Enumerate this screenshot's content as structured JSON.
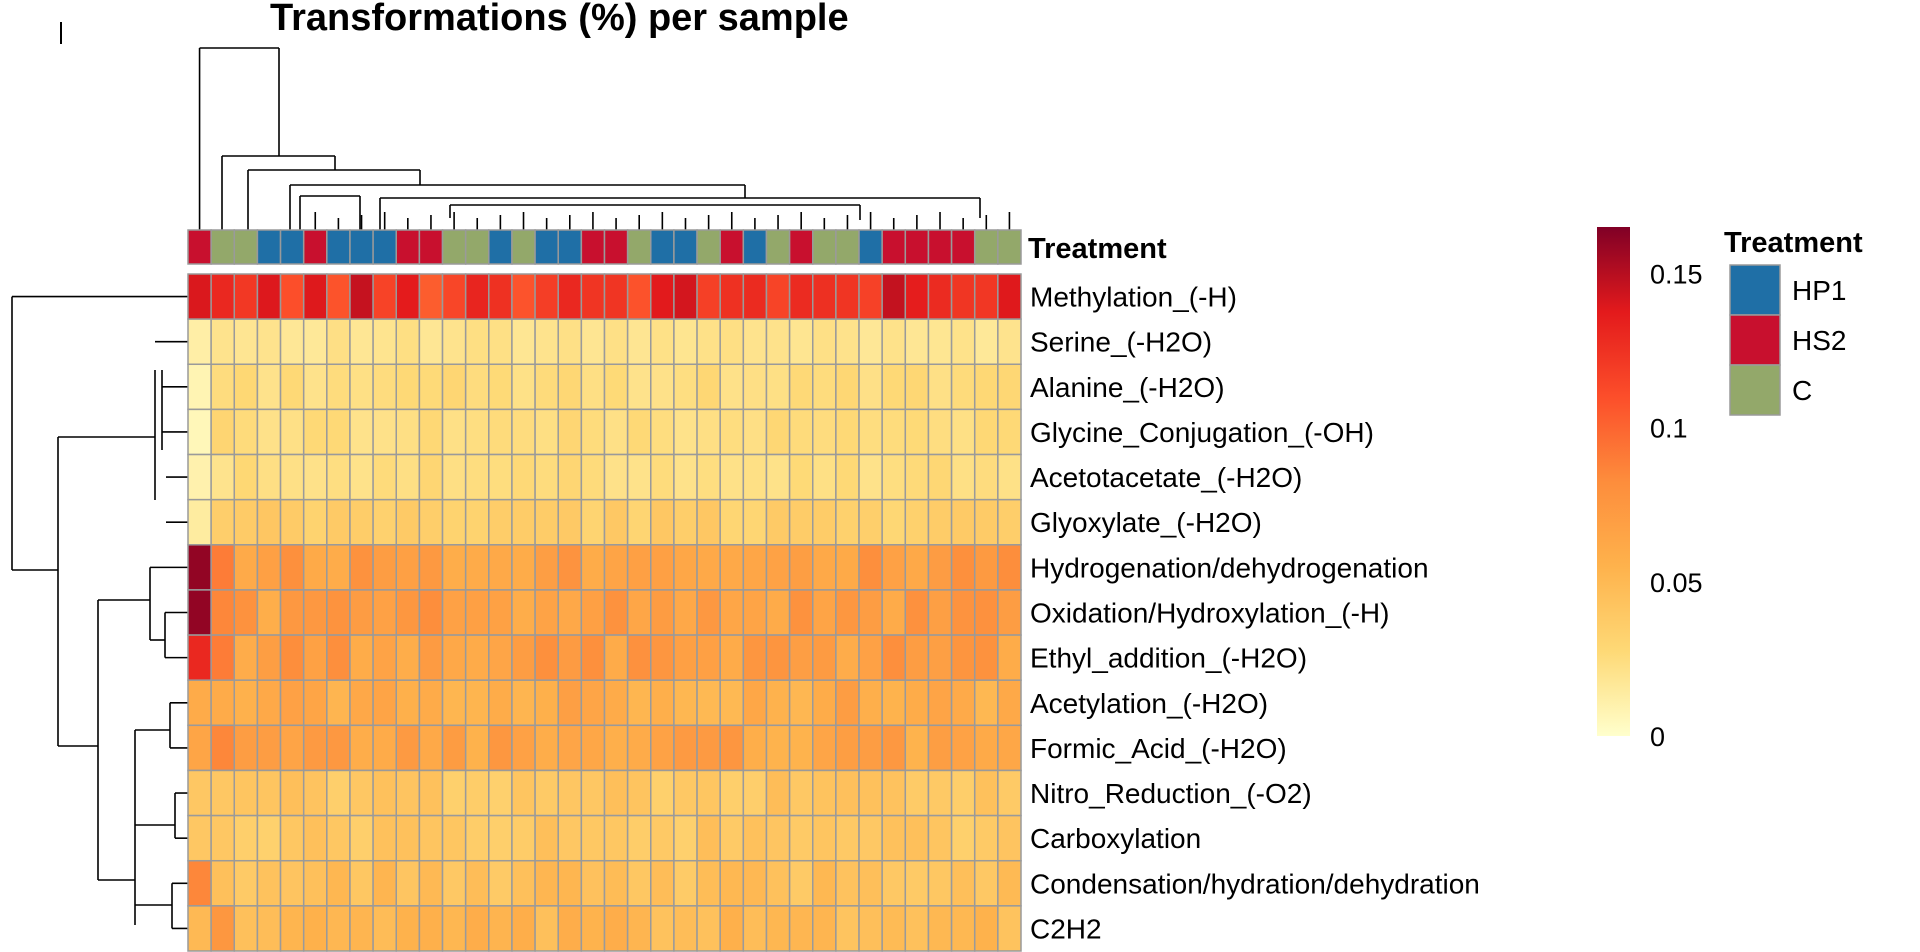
{
  "chart_data": {
    "type": "heatmap",
    "title": "Transformations (%) per sample",
    "rows": [
      "Methylation_(-H)",
      "Serine_(-H2O)",
      "Alanine_(-H2O)",
      "Glycine_Conjugation_(-OH)",
      "Acetotacetate_(-H2O)",
      "Glyoxylate_(-H2O)",
      "Hydrogenation/dehydrogenation",
      "Oxidation/Hydroxylation_(-H)",
      "Ethyl_addition_(-H2O)",
      "Acetylation_(-H2O)",
      "Formic_Acid_(-H2O)",
      "Nitro_Reduction_(-O2)",
      "Carboxylation",
      "Condensation/hydration/dehydration",
      "C2H2"
    ],
    "annotation": {
      "name": "Treatment",
      "groups": [
        {
          "label": "HP1",
          "color": "#1f6fa6"
        },
        {
          "label": "HS2",
          "color": "#c8102e"
        },
        {
          "label": "C",
          "color": "#93a86a"
        }
      ],
      "columns": [
        "HS2",
        "C",
        "C",
        "HP1",
        "HP1",
        "HS2",
        "HP1",
        "HP1",
        "HP1",
        "HS2",
        "HS2",
        "C",
        "C",
        "HP1",
        "C",
        "HP1",
        "HP1",
        "HS2",
        "HS2",
        "C",
        "HP1",
        "HP1",
        "C",
        "HS2",
        "HP1",
        "C",
        "HS2",
        "C",
        "C",
        "HP1",
        "HS2",
        "HS2",
        "HS2",
        "HS2",
        "C",
        "C"
      ]
    },
    "row_base": [
      0.125,
      0.02,
      0.025,
      0.025,
      0.025,
      0.035,
      0.07,
      0.07,
      0.07,
      0.06,
      0.065,
      0.04,
      0.04,
      0.045,
      0.05
    ],
    "values_first_column": [
      0.14,
      0.012,
      0.008,
      0.006,
      0.01,
      0.014,
      0.16,
      0.16,
      0.13,
      0.06,
      0.065,
      0.04,
      0.04,
      0.085,
      0.05
    ],
    "values_second_column": [
      0.13,
      0.02,
      0.025,
      0.03,
      0.02,
      0.035,
      0.09,
      0.085,
      0.09,
      0.06,
      0.085,
      0.04,
      0.04,
      0.045,
      0.075
    ],
    "colorbar": {
      "min": 0,
      "max": 0.165,
      "ticks": [
        {
          "value": 0.15,
          "label": "0.15"
        },
        {
          "value": 0.1,
          "label": "0.1"
        },
        {
          "value": 0.05,
          "label": "0.05"
        },
        {
          "value": 0,
          "label": "0"
        }
      ],
      "stops": [
        "#ffffcc",
        "#fed976",
        "#feb24c",
        "#fd8d3c",
        "#fc4e2a",
        "#e31a1c",
        "#800026"
      ]
    }
  }
}
